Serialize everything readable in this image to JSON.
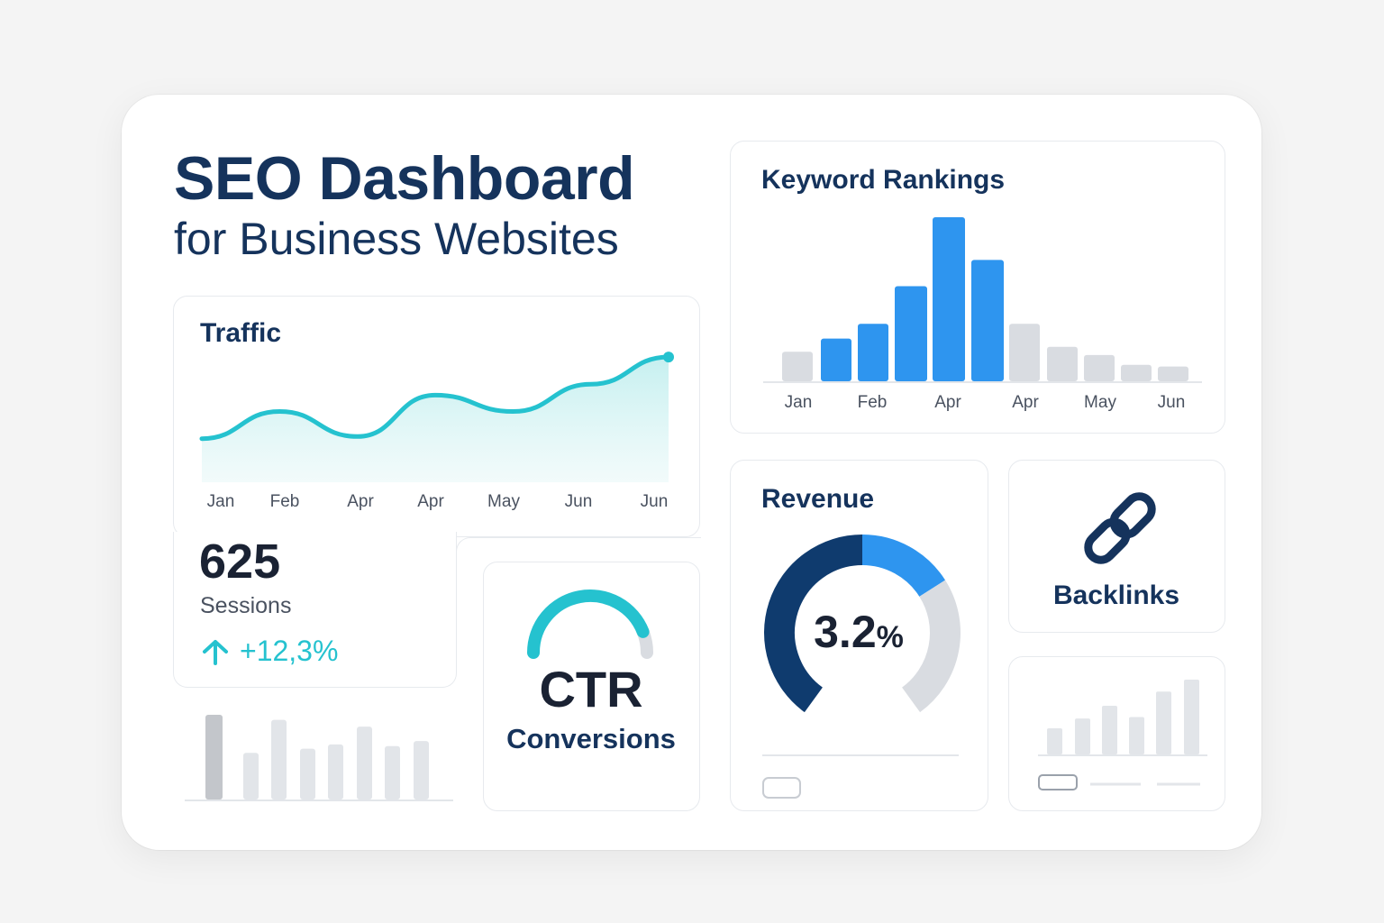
{
  "header": {
    "title": "SEO Dashboard",
    "subtitle": "for Business Websites"
  },
  "traffic": {
    "title": "Traffic",
    "sessions_value": "625",
    "sessions_label": "Sessions",
    "change": "+12,3%",
    "change_icon": "arrow-up-icon",
    "accent": "#25c2cf"
  },
  "ctr": {
    "label": "CTR",
    "sublabel": "Conversions",
    "level_fraction": 0.88
  },
  "keyword_rankings": {
    "title": "Keyword Rankings"
  },
  "revenue": {
    "title": "Revenue",
    "value": "3.2",
    "unit": "%"
  },
  "backlinks": {
    "label": "Backlinks",
    "icon": "link-icon"
  },
  "colors": {
    "navy": "#15335c",
    "blue": "#2e95ef",
    "dark_navy": "#0f3b6e",
    "teal": "#25c2cf",
    "gray": "#d9dce1"
  },
  "chart_data": [
    {
      "type": "area",
      "name": "traffic",
      "title": "Traffic",
      "x": [
        "Jan",
        "Feb",
        "Apr",
        "Apr",
        "May",
        "Jun",
        "Jun"
      ],
      "y": [
        10,
        35,
        12,
        50,
        35,
        60,
        85
      ],
      "ylim": [
        -30,
        100
      ],
      "grid": false
    },
    {
      "type": "bar",
      "name": "keyword_rankings",
      "title": "Keyword Rankings",
      "x_labels": [
        "Jan",
        "Feb",
        "Apr",
        "Apr",
        "May",
        "Jun"
      ],
      "values": [
        18,
        26,
        35,
        58,
        100,
        74,
        35,
        21,
        16,
        10,
        9
      ],
      "highlighted": [
        false,
        true,
        true,
        true,
        true,
        true,
        false,
        false,
        false,
        false,
        false
      ],
      "ylim": [
        0,
        100
      ]
    },
    {
      "type": "pie",
      "name": "revenue_donut",
      "values": [
        50,
        20,
        30
      ],
      "colors": [
        "#0f3b6e",
        "#2e95ef",
        "#d9dce1"
      ]
    },
    {
      "type": "bar",
      "name": "left_mini_bars",
      "values": [
        100,
        55,
        94,
        60,
        65,
        86,
        63,
        69
      ],
      "ylim": [
        0,
        100
      ]
    },
    {
      "type": "bar",
      "name": "right_mini_bars",
      "values": [
        35,
        48,
        65,
        50,
        84,
        100
      ],
      "ylim": [
        0,
        100
      ]
    }
  ]
}
